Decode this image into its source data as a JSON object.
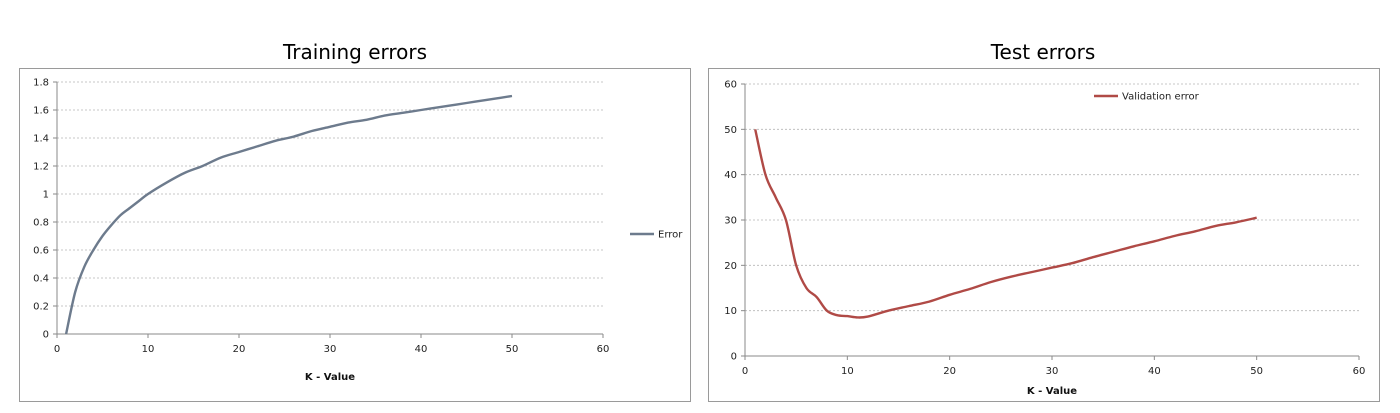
{
  "chart_data": [
    {
      "type": "line",
      "title": "Training errors",
      "xlabel": "K - Value",
      "ylabel": "",
      "xlim": [
        0,
        60
      ],
      "ylim": [
        0,
        1.8
      ],
      "xticks": [
        0,
        10,
        20,
        30,
        40,
        50,
        60
      ],
      "yticks": [
        0,
        0.2,
        0.4,
        0.6,
        0.8,
        1,
        1.2,
        1.4,
        1.6,
        1.8
      ],
      "xtick_labels": [
        "0",
        "10",
        "20",
        "30",
        "40",
        "50",
        "60"
      ],
      "ytick_labels": [
        "0",
        "0.2",
        "0.4",
        "0.6",
        "0.8",
        "1",
        "1.2",
        "1.4",
        "1.6",
        "1.8"
      ],
      "grid": true,
      "legend": "right",
      "series": [
        {
          "name": "Error",
          "color": "#6d7b8d",
          "x": [
            1,
            2,
            3,
            4,
            5,
            6,
            7,
            8,
            9,
            10,
            12,
            14,
            16,
            18,
            20,
            22,
            24,
            26,
            28,
            30,
            32,
            34,
            36,
            38,
            40,
            42,
            44,
            46,
            48,
            50
          ],
          "y": [
            0,
            0.3,
            0.48,
            0.6,
            0.7,
            0.78,
            0.85,
            0.9,
            0.95,
            1.0,
            1.08,
            1.15,
            1.2,
            1.26,
            1.3,
            1.34,
            1.38,
            1.41,
            1.45,
            1.48,
            1.51,
            1.53,
            1.56,
            1.58,
            1.6,
            1.62,
            1.64,
            1.66,
            1.68,
            1.7
          ]
        }
      ]
    },
    {
      "type": "line",
      "title": "Test errors",
      "xlabel": "K - Value",
      "ylabel": "",
      "xlim": [
        0,
        60
      ],
      "ylim": [
        0,
        60
      ],
      "xticks": [
        0,
        10,
        20,
        30,
        40,
        50,
        60
      ],
      "yticks": [
        0,
        10,
        20,
        30,
        40,
        50,
        60
      ],
      "xtick_labels": [
        "0",
        "10",
        "20",
        "30",
        "40",
        "50",
        "60"
      ],
      "ytick_labels": [
        "0",
        "10",
        "20",
        "30",
        "40",
        "50",
        "60"
      ],
      "grid": true,
      "legend": "top",
      "series": [
        {
          "name": "Validation error",
          "color": "#b04a46",
          "x": [
            1,
            2,
            3,
            4,
            5,
            6,
            7,
            8,
            9,
            10,
            11,
            12,
            14,
            16,
            18,
            20,
            22,
            24,
            26,
            28,
            30,
            32,
            34,
            36,
            38,
            40,
            42,
            44,
            46,
            48,
            50
          ],
          "y": [
            50,
            40,
            35,
            30,
            20,
            15,
            13,
            10,
            9,
            8.8,
            8.5,
            8.7,
            10,
            11,
            12,
            13.5,
            14.8,
            16.3,
            17.5,
            18.5,
            19.5,
            20.5,
            21.8,
            23,
            24.2,
            25.3,
            26.5,
            27.5,
            28.7,
            29.5,
            30.5
          ]
        }
      ]
    }
  ]
}
